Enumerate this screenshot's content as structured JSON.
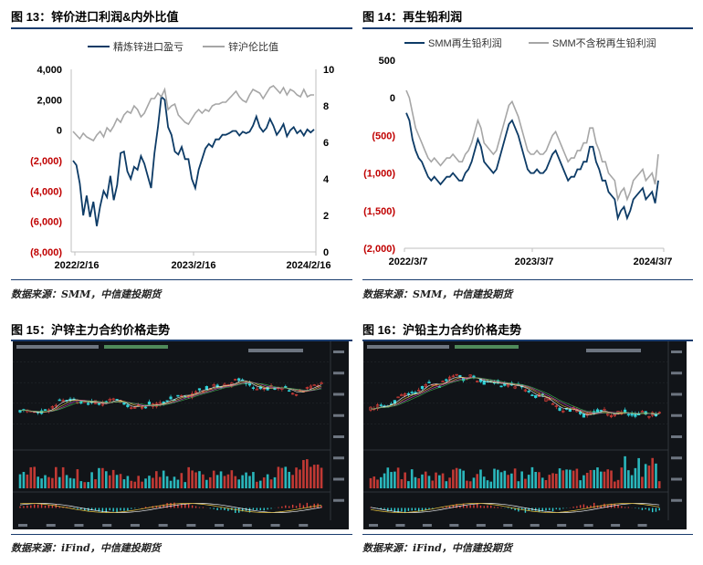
{
  "panels": {
    "p13": {
      "title": "图 13：锌价进口利润&内外比值",
      "source": "数据来源：SMM，中信建投期货"
    },
    "p14": {
      "title": "图 14：再生铅利润",
      "source": "数据来源：SMM，中信建投期货"
    },
    "p15": {
      "title": "图 15：沪锌主力合约价格走势",
      "source": "数据来源：iFind，中信建投期货"
    },
    "p16": {
      "title": "图 16：沪铅主力合约价格走势",
      "source": "数据来源：iFind，中信建投期货"
    }
  },
  "colors": {
    "navy": "#0d3b66",
    "grey": "#a6a6a6",
    "neg": "#c00000",
    "rule": "#1a3c6e"
  },
  "chart_data": [
    {
      "id": "zinc-import-profit",
      "type": "line",
      "title": "",
      "x_ticks": [
        "2022/2/16",
        "2023/2/16",
        "2024/2/16"
      ],
      "left_ticks": [
        "4,000",
        "2,000",
        "0",
        "(2,000)",
        "(4,000)",
        "(6,000)",
        "(8,000)"
      ],
      "right_ticks": [
        "10",
        "8",
        "6",
        "4",
        "2",
        "0"
      ],
      "ylim_left": [
        -8000,
        4000
      ],
      "ylim_right": [
        0,
        10
      ],
      "series": [
        {
          "name": "精炼锌进口盈亏",
          "axis": "left",
          "values": [
            -2000,
            -2300,
            -3500,
            -5600,
            -4300,
            -5700,
            -4700,
            -6300,
            -5000,
            -4000,
            -4400,
            -3000,
            -4600,
            -3600,
            -1500,
            -1400,
            -2700,
            -3200,
            -2400,
            -2600,
            -1700,
            -2200,
            -3000,
            -3800,
            -1500,
            200,
            2200,
            2000,
            200,
            -300,
            -1400,
            -1600,
            -1100,
            -1900,
            -1900,
            -3200,
            -3800,
            -2600,
            -1900,
            -1200,
            -900,
            -1100,
            -600,
            -600,
            -300,
            -300,
            -200,
            -50,
            -50,
            -350,
            -100,
            -200,
            -100,
            300,
            900,
            200,
            -100,
            150,
            750,
            300,
            -300,
            0,
            400,
            -400,
            0,
            200,
            -200,
            0,
            -350,
            50,
            -150,
            50
          ]
        },
        {
          "name": "锌沪伦比值",
          "axis": "right",
          "values": [
            6.6,
            6.4,
            6.2,
            6.5,
            6.3,
            6.2,
            6.1,
            6.4,
            6.6,
            6.3,
            6.8,
            6.6,
            6.9,
            7.3,
            7.1,
            7.5,
            7.7,
            7.6,
            8.0,
            7.8,
            7.4,
            7.6,
            8.0,
            8.4,
            8.4,
            8.7,
            8.5,
            8.9,
            7.8,
            8.0,
            8.1,
            7.5,
            7.3,
            7.1,
            7.0,
            7.3,
            7.6,
            7.8,
            7.6,
            7.8,
            7.7,
            8.0,
            8.1,
            8.1,
            8.2,
            8.2,
            8.4,
            8.6,
            8.8,
            8.5,
            8.3,
            8.2,
            8.6,
            8.9,
            8.8,
            8.7,
            8.4,
            8.7,
            9.0,
            9.1,
            8.9,
            8.7,
            9.0,
            8.6,
            8.9,
            8.8,
            8.6,
            8.5,
            8.9,
            8.5,
            8.6,
            8.6
          ]
        }
      ]
    },
    {
      "id": "recycled-lead-profit",
      "type": "line",
      "title": "",
      "x_ticks": [
        "2022/3/7",
        "2023/3/7",
        "2024/3/7"
      ],
      "left_ticks": [
        "500",
        "0",
        "(500)",
        "(1,000)",
        "(1,500)",
        "(2,000)"
      ],
      "ylim": [
        -2000,
        500
      ],
      "series": [
        {
          "name": "SMM再生铅利润",
          "values": [
            -200,
            -300,
            -550,
            -700,
            -800,
            -850,
            -950,
            -1050,
            -1100,
            -1050,
            -1100,
            -1150,
            -1100,
            -1050,
            -1050,
            -1000,
            -1050,
            -1100,
            -1100,
            -1000,
            -950,
            -850,
            -700,
            -550,
            -650,
            -850,
            -900,
            -950,
            -1000,
            -950,
            -800,
            -650,
            -500,
            -350,
            -300,
            -400,
            -500,
            -650,
            -800,
            -950,
            -1000,
            -1000,
            -950,
            -1000,
            -1000,
            -950,
            -850,
            -750,
            -700,
            -800,
            -900,
            -1000,
            -1100,
            -1050,
            -1050,
            -950,
            -950,
            -850,
            -850,
            -650,
            -650,
            -850,
            -950,
            -1100,
            -1100,
            -1250,
            -1300,
            -1350,
            -1600,
            -1500,
            -1450,
            -1600,
            -1500,
            -1350,
            -1300,
            -1250,
            -1200,
            -1350,
            -1300,
            -1250,
            -1400,
            -1100
          ]
        },
        {
          "name": "SMM不含税再生铅利润",
          "values": [
            100,
            0,
            -200,
            -400,
            -500,
            -600,
            -700,
            -800,
            -850,
            -800,
            -850,
            -900,
            -850,
            -800,
            -800,
            -750,
            -800,
            -850,
            -850,
            -750,
            -700,
            -600,
            -450,
            -300,
            -400,
            -600,
            -650,
            -700,
            -750,
            -700,
            -550,
            -400,
            -250,
            -100,
            -50,
            -150,
            -250,
            -400,
            -550,
            -700,
            -750,
            -750,
            -700,
            -750,
            -750,
            -700,
            -600,
            -500,
            -450,
            -550,
            -650,
            -750,
            -850,
            -800,
            -800,
            -700,
            -700,
            -600,
            -600,
            -400,
            -400,
            -600,
            -700,
            -850,
            -850,
            -1000,
            -1050,
            -1100,
            -1350,
            -1250,
            -1200,
            -1350,
            -1250,
            -1100,
            -1050,
            -1000,
            -950,
            -1100,
            -1050,
            -1000,
            -1150,
            -750
          ]
        }
      ]
    }
  ]
}
